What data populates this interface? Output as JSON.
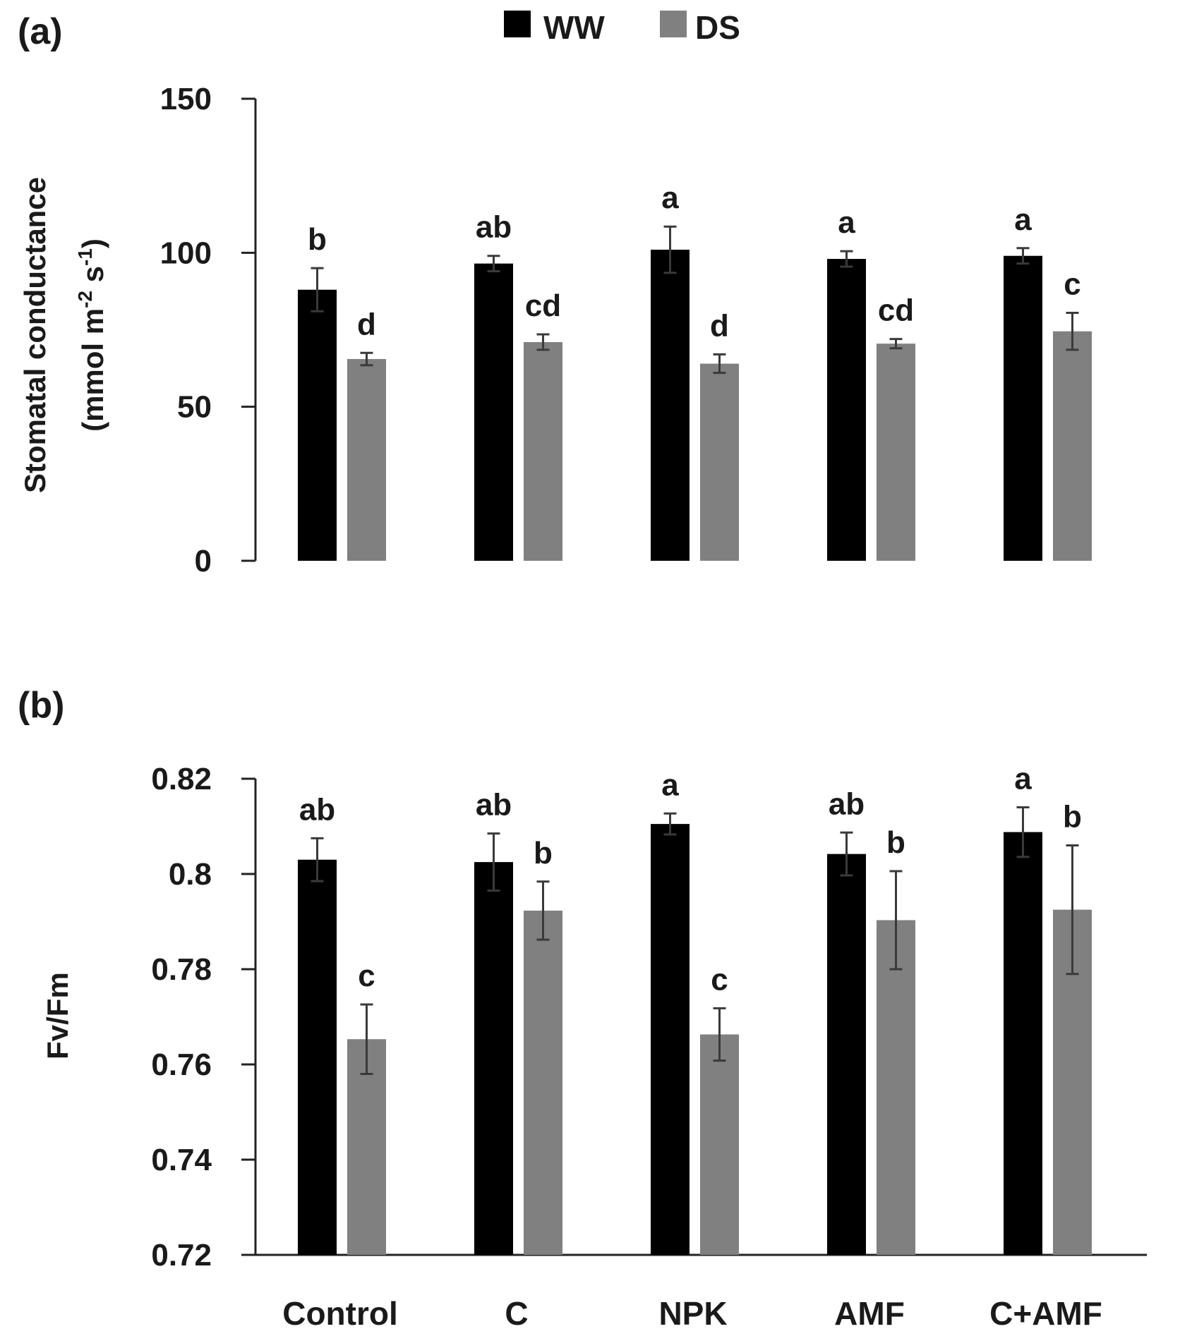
{
  "legend": [
    {
      "name": "WW",
      "color": "#000000"
    },
    {
      "name": "DS",
      "color": "#808080"
    }
  ],
  "chart_data": [
    {
      "panel": "(a)",
      "type": "bar",
      "categories": [
        "Control",
        "C",
        "NPK",
        "AMF",
        "C+AMF"
      ],
      "ylabel_line1": "Stomatal conductance",
      "ylabel_line2": "(mmol m-2 s-1)",
      "ylim": [
        0,
        150
      ],
      "yticks": [
        "0",
        "50",
        "100",
        "150"
      ],
      "yticks_values": [
        0,
        50,
        100,
        150
      ],
      "series": [
        {
          "name": "WW",
          "color": "#000000",
          "values": [
            88,
            96.5,
            101,
            98,
            99
          ],
          "errors": [
            7,
            2.5,
            7.5,
            2.5,
            2.5
          ],
          "labels": [
            "b",
            "ab",
            "a",
            "a",
            "a"
          ]
        },
        {
          "name": "DS",
          "color": "#808080",
          "values": [
            65.5,
            71,
            64,
            70.5,
            74.5
          ],
          "errors": [
            2,
            2.5,
            3,
            1.5,
            6
          ],
          "labels": [
            "d",
            "cd",
            "d",
            "cd",
            "c"
          ]
        }
      ]
    },
    {
      "panel": "(b)",
      "type": "bar",
      "categories": [
        "Control",
        "C",
        "NPK",
        "AMF",
        "C+AMF"
      ],
      "ylabel_line1": "Fv/Fm",
      "ylabel_line2": "",
      "ylim": [
        0.72,
        0.82
      ],
      "yticks": [
        "0.72",
        "0.74",
        "0.76",
        "0.78",
        "0.8",
        "0.82"
      ],
      "yticks_values": [
        0.72,
        0.74,
        0.76,
        0.78,
        0.8,
        0.82
      ],
      "series": [
        {
          "name": "WW",
          "color": "#000000",
          "values": [
            0.803,
            0.8025,
            0.8105,
            0.8042,
            0.8088
          ],
          "errors": [
            0.0045,
            0.006,
            0.0022,
            0.0045,
            0.0052
          ],
          "labels": [
            "ab",
            "ab",
            "a",
            "ab",
            "a"
          ]
        },
        {
          "name": "DS",
          "color": "#808080",
          "values": [
            0.7653,
            0.7923,
            0.7663,
            0.7903,
            0.7925
          ],
          "errors": [
            0.0073,
            0.0061,
            0.0055,
            0.0103,
            0.0135
          ],
          "labels": [
            "c",
            "b",
            "c",
            "b",
            "b"
          ]
        }
      ]
    }
  ]
}
